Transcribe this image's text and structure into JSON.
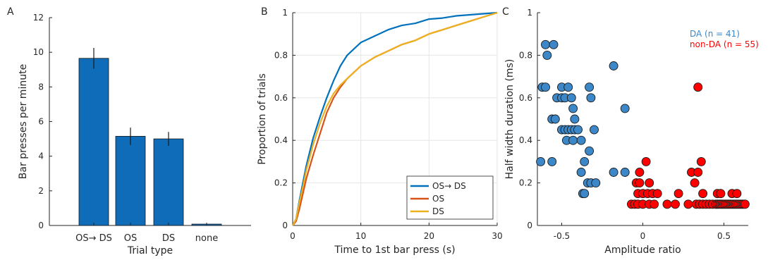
{
  "colors": {
    "bar_fill": "#0e6cb9",
    "ds_transition": "#0072bd",
    "os": "#d95319",
    "ds": "#edb120",
    "da": "#3b87c8",
    "non_da": "#ff0000",
    "axis": "#262626",
    "grid": "#e6e6e6"
  },
  "chart_data": [
    {
      "type": "bar",
      "panel_label": "A",
      "categories": [
        "OS→ DS",
        "OS",
        "DS",
        "none"
      ],
      "values": [
        9.65,
        5.15,
        5.0,
        0.08
      ],
      "errors": [
        0.6,
        0.5,
        0.4,
        0.0
      ],
      "xlabel": "Trial type",
      "ylabel": "Bar presses per minute",
      "ylim": [
        0,
        12
      ],
      "yticks": [
        0,
        2,
        4,
        6,
        8,
        10,
        12
      ],
      "grid": false
    },
    {
      "type": "line",
      "panel_label": "B",
      "xlabel": "Time to 1st bar press (s)",
      "ylabel": "Proportion of trials",
      "xlim": [
        0,
        30
      ],
      "ylim": [
        0,
        1
      ],
      "xticks": [
        0,
        10,
        20,
        30
      ],
      "yticks": [
        0,
        0.2,
        0.4,
        0.6,
        0.8,
        1
      ],
      "ytick_labels": [
        "0",
        "0.2",
        "0.4",
        "0.6",
        "0.8",
        "1"
      ],
      "grid": true,
      "legend_position": "bottom-right",
      "series": [
        {
          "name": "OS→ DS",
          "color_key": "ds_transition",
          "x": [
            0,
            0.5,
            1,
            1.5,
            2,
            3,
            4,
            5,
            6,
            7,
            8,
            9,
            10,
            12,
            14,
            16,
            18,
            20,
            22,
            24,
            26,
            28,
            30
          ],
          "y": [
            0,
            0.03,
            0.12,
            0.2,
            0.28,
            0.41,
            0.51,
            0.6,
            0.68,
            0.75,
            0.8,
            0.83,
            0.86,
            0.89,
            0.92,
            0.94,
            0.95,
            0.97,
            0.975,
            0.985,
            0.99,
            0.995,
            1.0
          ]
        },
        {
          "name": "OS",
          "color_key": "os",
          "x": [
            0,
            0.5,
            1,
            1.5,
            2,
            3,
            4,
            5,
            6,
            7,
            8,
            9,
            10,
            12,
            14,
            16,
            18,
            20,
            22,
            24,
            26,
            28,
            30
          ],
          "y": [
            0,
            0.02,
            0.08,
            0.15,
            0.22,
            0.33,
            0.43,
            0.53,
            0.6,
            0.65,
            0.69,
            0.72,
            0.75,
            0.79,
            0.82,
            0.85,
            0.87,
            0.9,
            0.92,
            0.94,
            0.96,
            0.98,
            1.0
          ]
        },
        {
          "name": "DS",
          "color_key": "ds",
          "x": [
            0,
            0.5,
            1,
            1.5,
            2,
            3,
            4,
            5,
            6,
            7,
            8,
            9,
            10,
            12,
            14,
            16,
            18,
            20,
            22,
            24,
            26,
            28,
            30
          ],
          "y": [
            0,
            0.03,
            0.11,
            0.18,
            0.26,
            0.38,
            0.48,
            0.56,
            0.62,
            0.66,
            0.69,
            0.72,
            0.75,
            0.79,
            0.82,
            0.85,
            0.87,
            0.9,
            0.92,
            0.94,
            0.96,
            0.98,
            1.0
          ]
        }
      ]
    },
    {
      "type": "scatter",
      "panel_label": "C",
      "xlabel": "Amplitude ratio",
      "ylabel": "Half width duration (ms)",
      "xlim": [
        -0.65,
        0.65
      ],
      "ylim": [
        0,
        1
      ],
      "xticks": [
        -0.5,
        0,
        0.5
      ],
      "xtick_labels": [
        "-0.5",
        "0",
        "0.5"
      ],
      "yticks": [
        0,
        0.2,
        0.4,
        0.6,
        0.8,
        1
      ],
      "ytick_labels": [
        "0",
        "0.2",
        "0.4",
        "0.6",
        "0.8",
        "1"
      ],
      "grid": false,
      "legend_position": "top-right",
      "series": [
        {
          "name": "DA (n = 41)",
          "color_key": "da",
          "points": [
            [
              -0.62,
              0.65
            ],
            [
              -0.6,
              0.85
            ],
            [
              -0.59,
              0.8
            ],
            [
              -0.55,
              0.85
            ],
            [
              -0.6,
              0.65
            ],
            [
              -0.63,
              0.3
            ],
            [
              -0.56,
              0.5
            ],
            [
              -0.54,
              0.5
            ],
            [
              -0.56,
              0.3
            ],
            [
              -0.53,
              0.6
            ],
            [
              -0.5,
              0.65
            ],
            [
              -0.5,
              0.6
            ],
            [
              -0.48,
              0.6
            ],
            [
              -0.46,
              0.65
            ],
            [
              -0.44,
              0.6
            ],
            [
              -0.43,
              0.55
            ],
            [
              -0.42,
              0.5
            ],
            [
              -0.5,
              0.45
            ],
            [
              -0.48,
              0.45
            ],
            [
              -0.47,
              0.4
            ],
            [
              -0.46,
              0.45
            ],
            [
              -0.44,
              0.45
            ],
            [
              -0.42,
              0.45
            ],
            [
              -0.4,
              0.45
            ],
            [
              -0.43,
              0.4
            ],
            [
              -0.38,
              0.4
            ],
            [
              -0.33,
              0.65
            ],
            [
              -0.32,
              0.6
            ],
            [
              -0.3,
              0.45
            ],
            [
              -0.33,
              0.35
            ],
            [
              -0.36,
              0.3
            ],
            [
              -0.38,
              0.25
            ],
            [
              -0.37,
              0.15
            ],
            [
              -0.36,
              0.15
            ],
            [
              -0.34,
              0.2
            ],
            [
              -0.32,
              0.2
            ],
            [
              -0.29,
              0.2
            ],
            [
              -0.18,
              0.75
            ],
            [
              -0.11,
              0.55
            ],
            [
              -0.18,
              0.25
            ],
            [
              -0.11,
              0.25
            ]
          ]
        },
        {
          "name": "non-DA (n = 55)",
          "color_key": "non_da",
          "points": [
            [
              0.34,
              0.65
            ],
            [
              0.02,
              0.3
            ],
            [
              0.36,
              0.3
            ],
            [
              -0.02,
              0.25
            ],
            [
              0.3,
              0.25
            ],
            [
              0.34,
              0.25
            ],
            [
              -0.04,
              0.2
            ],
            [
              -0.02,
              0.2
            ],
            [
              0.04,
              0.2
            ],
            [
              0.32,
              0.2
            ],
            [
              -0.03,
              0.15
            ],
            [
              0.0,
              0.15
            ],
            [
              0.03,
              0.15
            ],
            [
              0.06,
              0.15
            ],
            [
              0.09,
              0.15
            ],
            [
              0.22,
              0.15
            ],
            [
              0.37,
              0.15
            ],
            [
              0.46,
              0.15
            ],
            [
              0.48,
              0.15
            ],
            [
              0.55,
              0.15
            ],
            [
              0.58,
              0.15
            ],
            [
              -0.07,
              0.1
            ],
            [
              -0.05,
              0.1
            ],
            [
              -0.03,
              0.1
            ],
            [
              0.0,
              0.1
            ],
            [
              0.04,
              0.1
            ],
            [
              0.07,
              0.1
            ],
            [
              0.15,
              0.1
            ],
            [
              0.2,
              0.1
            ],
            [
              0.28,
              0.1
            ],
            [
              0.33,
              0.1
            ],
            [
              0.35,
              0.1
            ],
            [
              0.37,
              0.1
            ],
            [
              0.39,
              0.1
            ],
            [
              0.41,
              0.1
            ],
            [
              0.43,
              0.1
            ],
            [
              0.45,
              0.1
            ],
            [
              0.46,
              0.1
            ],
            [
              0.47,
              0.1
            ],
            [
              0.48,
              0.1
            ],
            [
              0.49,
              0.1
            ],
            [
              0.5,
              0.1
            ],
            [
              0.51,
              0.1
            ],
            [
              0.52,
              0.1
            ],
            [
              0.53,
              0.1
            ],
            [
              0.54,
              0.1
            ],
            [
              0.55,
              0.1
            ],
            [
              0.56,
              0.1
            ],
            [
              0.57,
              0.1
            ],
            [
              0.58,
              0.1
            ],
            [
              0.59,
              0.1
            ],
            [
              0.6,
              0.1
            ],
            [
              0.61,
              0.1
            ],
            [
              0.62,
              0.1
            ],
            [
              0.63,
              0.1
            ]
          ]
        }
      ]
    }
  ]
}
